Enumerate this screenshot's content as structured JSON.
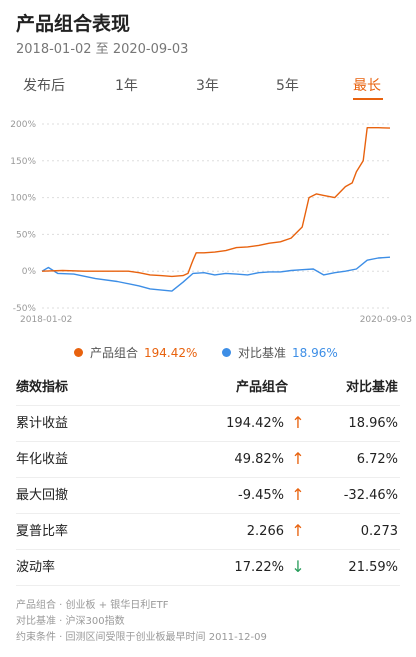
{
  "header": {
    "title": "产品组合表现",
    "date_range": "2018-01-02 至 2020-09-03"
  },
  "tabs": [
    {
      "label": "发布后",
      "active": false
    },
    {
      "label": "1年",
      "active": false
    },
    {
      "label": "3年",
      "active": false
    },
    {
      "label": "5年",
      "active": false
    },
    {
      "label": "最长",
      "active": true
    }
  ],
  "colors": {
    "accent": "#e8620e",
    "portfolio": "#e8620e",
    "benchmark": "#3d8ee6",
    "up_arrow": "#e8620e",
    "down_arrow": "#2a9d5c"
  },
  "chart_data": {
    "type": "line",
    "y_ticks": [
      "200%",
      "150%",
      "100%",
      "50%",
      "0%",
      "-50%"
    ],
    "ylim": [
      -50,
      200
    ],
    "x_start_label": "2018-01-02",
    "x_end_label": "2020-09-03",
    "x_range": [
      "2018-01-02",
      "2020-09-03"
    ],
    "grid": true,
    "series": [
      {
        "name": "产品组合",
        "color": "#e8620e",
        "points": [
          [
            "2018-01-02",
            0
          ],
          [
            "2018-03-01",
            1
          ],
          [
            "2018-05-01",
            0
          ],
          [
            "2018-07-01",
            0
          ],
          [
            "2018-09-01",
            0
          ],
          [
            "2018-10-01",
            -2
          ],
          [
            "2018-11-01",
            -5
          ],
          [
            "2018-12-01",
            -6
          ],
          [
            "2019-01-01",
            -7
          ],
          [
            "2019-02-01",
            -6
          ],
          [
            "2019-02-15",
            -3
          ],
          [
            "2019-02-25",
            10
          ],
          [
            "2019-03-01",
            15
          ],
          [
            "2019-03-10",
            25
          ],
          [
            "2019-04-01",
            25
          ],
          [
            "2019-05-01",
            26
          ],
          [
            "2019-06-01",
            28
          ],
          [
            "2019-07-01",
            32
          ],
          [
            "2019-08-01",
            33
          ],
          [
            "2019-09-01",
            35
          ],
          [
            "2019-10-01",
            38
          ],
          [
            "2019-11-01",
            40
          ],
          [
            "2019-12-01",
            45
          ],
          [
            "2020-01-01",
            60
          ],
          [
            "2020-01-20",
            100
          ],
          [
            "2020-02-10",
            105
          ],
          [
            "2020-03-01",
            103
          ],
          [
            "2020-04-01",
            100
          ],
          [
            "2020-05-01",
            115
          ],
          [
            "2020-05-20",
            120
          ],
          [
            "2020-06-01",
            135
          ],
          [
            "2020-06-20",
            150
          ],
          [
            "2020-07-01",
            195
          ],
          [
            "2020-08-01",
            195
          ],
          [
            "2020-09-03",
            194.42
          ]
        ]
      },
      {
        "name": "对比基准",
        "color": "#3d8ee6",
        "points": [
          [
            "2018-01-02",
            0
          ],
          [
            "2018-01-20",
            5
          ],
          [
            "2018-02-15",
            -3
          ],
          [
            "2018-04-01",
            -4
          ],
          [
            "2018-06-01",
            -10
          ],
          [
            "2018-08-01",
            -14
          ],
          [
            "2018-10-01",
            -20
          ],
          [
            "2018-11-01",
            -24
          ],
          [
            "2019-01-01",
            -27
          ],
          [
            "2019-02-01",
            -15
          ],
          [
            "2019-03-01",
            -3
          ],
          [
            "2019-04-01",
            -2
          ],
          [
            "2019-05-01",
            -5
          ],
          [
            "2019-06-01",
            -3
          ],
          [
            "2019-07-01",
            -4
          ],
          [
            "2019-08-01",
            -5
          ],
          [
            "2019-09-01",
            -2
          ],
          [
            "2019-10-01",
            -1
          ],
          [
            "2019-11-01",
            -1
          ],
          [
            "2019-12-01",
            1
          ],
          [
            "2020-01-01",
            2
          ],
          [
            "2020-02-01",
            3
          ],
          [
            "2020-03-01",
            -5
          ],
          [
            "2020-04-01",
            -2
          ],
          [
            "2020-05-01",
            0
          ],
          [
            "2020-06-01",
            3
          ],
          [
            "2020-07-01",
            15
          ],
          [
            "2020-08-01",
            18
          ],
          [
            "2020-09-03",
            18.96
          ]
        ]
      }
    ]
  },
  "legend": [
    {
      "name": "产品组合",
      "value": "194.42%",
      "color": "#e8620e"
    },
    {
      "name": "对比基准",
      "value": "18.96%",
      "color": "#3d8ee6"
    }
  ],
  "table": {
    "headers": [
      "绩效指标",
      "产品组合",
      "对比基准"
    ],
    "rows": [
      {
        "name": "累计收益",
        "portfolio": "194.42%",
        "arrow": "↑",
        "arrow_dir": "up",
        "benchmark": "18.96%"
      },
      {
        "name": "年化收益",
        "portfolio": "49.82%",
        "arrow": "↑",
        "arrow_dir": "up",
        "benchmark": "6.72%"
      },
      {
        "name": "最大回撤",
        "portfolio": "-9.45%",
        "arrow": "↑",
        "arrow_dir": "up",
        "benchmark": "-32.46%"
      },
      {
        "name": "夏普比率",
        "portfolio": "2.266",
        "arrow": "↑",
        "arrow_dir": "up",
        "benchmark": "0.273"
      },
      {
        "name": "波动率",
        "portfolio": "17.22%",
        "arrow": "↓",
        "arrow_dir": "down",
        "benchmark": "21.59%"
      }
    ]
  },
  "notes": [
    "产品组合 · 创业板 + 银华日利ETF",
    "对比基准 · 沪深300指数",
    "约束条件 · 回测区间受限于创业板最早时间 2011-12-09"
  ]
}
